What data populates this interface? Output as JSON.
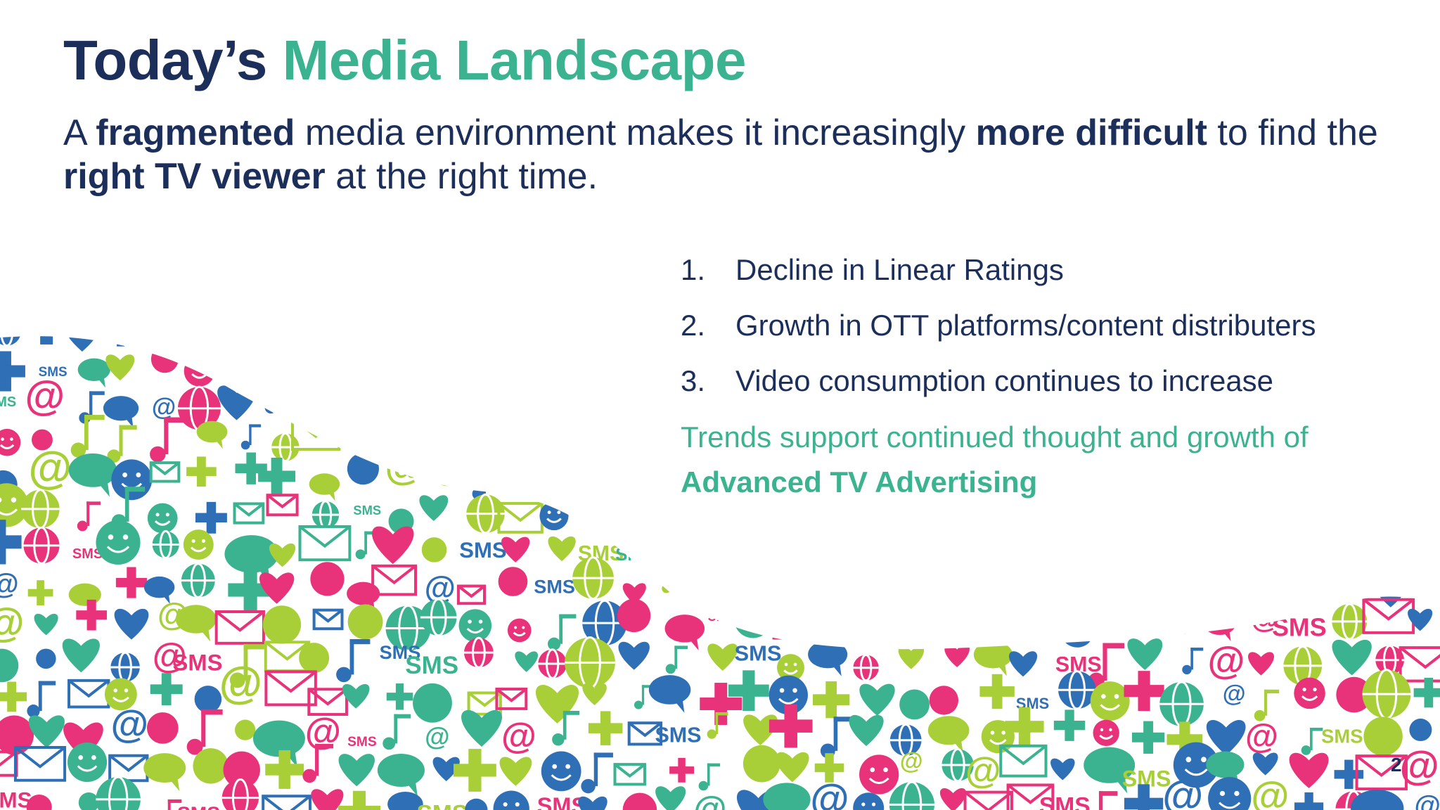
{
  "slide": {
    "title_part1": "Today’s",
    "title_part2": "Media Landscape",
    "subtitle": {
      "s1": "A ",
      "b1": "fragmented",
      "s2": " media environment makes it increasingly ",
      "b2": "more difficult",
      "s3": " to find the ",
      "b3": "right TV viewer",
      "s4": " at the right time."
    },
    "points": [
      {
        "num": "1.",
        "text": "Decline in Linear Ratings"
      },
      {
        "num": "2.",
        "text": "Growth in OTT platforms/content distributers"
      },
      {
        "num": "3.",
        "text": "Video consumption continues to increase"
      }
    ],
    "trend_text": "Trends support continued thought and growth of",
    "trend_emphasis": "Advanced TV Advertising",
    "page_number": "2"
  },
  "illustration": {
    "icon_text": "SMS",
    "icon_at": "@",
    "colors": {
      "navy": "#1c2e5a",
      "teal": "#3bb391",
      "blue": "#2f6fb5",
      "pink": "#e8327a",
      "lime": "#a9cf38"
    }
  }
}
